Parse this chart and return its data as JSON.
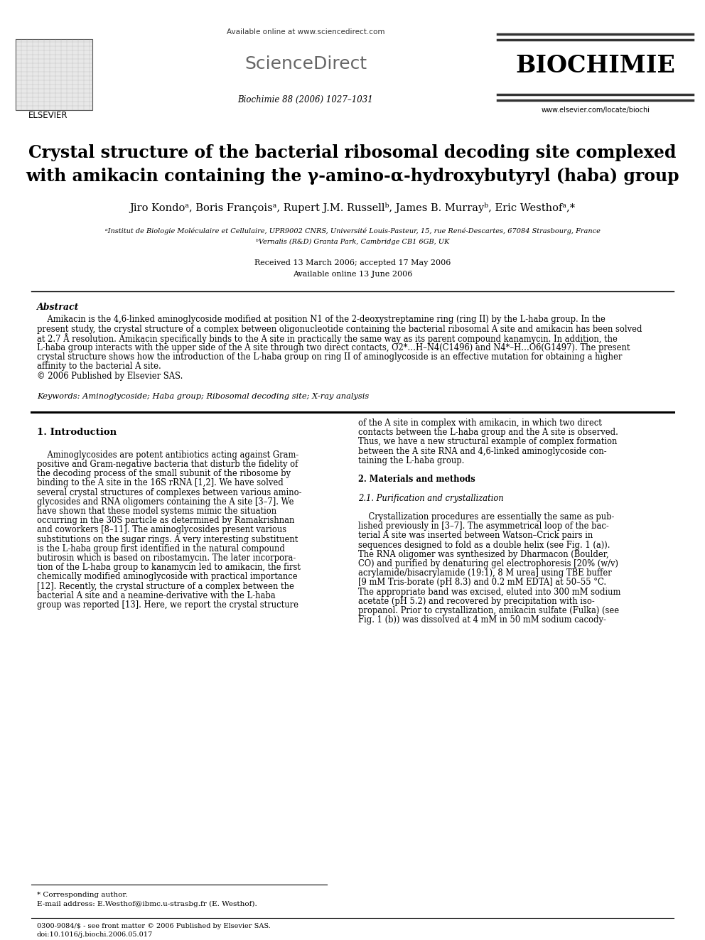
{
  "page_bg": "#ffffff",
  "header_available": "Available online at www.sciencedirect.com",
  "header_sciencedirect": "ScienceDirect",
  "header_journal": "BIOCHIMIE",
  "header_journal_info": "Biochimie 88 (2006) 1027–1031",
  "header_elsevier": "ELSEVIER",
  "header_url": "www.elsevier.com/locate/biochi",
  "title_line1": "Crystal structure of the bacterial ribosomal decoding site complexed",
  "title_line2": "with amikacin containing the γ-amino-α-hydroxybutyryl (haba) group",
  "authors": "Jiro Kondoᵃ, Boris Françoisᵃ, Rupert J.M. Russellᵇ, James B. Murrayᵇ, Eric Westhofᵃ,*",
  "affil_a": "ᵃInstitut de Biologie Moléculaire et Cellulaire, UPR9002 CNRS, Université Louis-Pasteur, 15, rue René-Descartes, 67084 Strasbourg, France",
  "affil_b": "ᵇVernalis (R&D) Granta Park, Cambridge CB1 6GB, UK",
  "received": "Received 13 March 2006; accepted 17 May 2006",
  "available_online": "Available online 13 June 2006",
  "abstract_title": "Abstract",
  "abstract_lines": [
    "    Amikacin is the 4,6-linked aminoglycoside modified at position N1 of the 2-deoxystreptamine ring (ring II) by the L-haba group. In the",
    "present study, the crystal structure of a complex between oligonucleotide containing the bacterial ribosomal A site and amikacin has been solved",
    "at 2.7 Å resolution. Amikacin specifically binds to the A site in practically the same way as its parent compound kanamycin. In addition, the",
    "L-haba group interacts with the upper side of the A site through two direct contacts, O2*…H–N4(C1496) and N4*–H…O6(G1497). The present",
    "crystal structure shows how the introduction of the L-haba group on ring II of aminoglycoside is an effective mutation for obtaining a higher",
    "affinity to the bacterial A site.",
    "© 2006 Published by Elsevier SAS."
  ],
  "keywords": "Keywords: Aminoglycoside; Haba group; Ribosomal decoding site; X-ray analysis",
  "intro_title": "1. Introduction",
  "left_col_lines": [
    "    Aminoglycosides are potent antibiotics acting against Gram-",
    "positive and Gram-negative bacteria that disturb the fidelity of",
    "the decoding process of the small subunit of the ribosome by",
    "binding to the A site in the 16S rRNA [1,2]. We have solved",
    "several crystal structures of complexes between various amino-",
    "glycosides and RNA oligomers containing the A site [3–7]. We",
    "have shown that these model systems mimic the situation",
    "occurring in the 30S particle as determined by Ramakrishnan",
    "and coworkers [8–11]. The aminoglycosides present various",
    "substitutions on the sugar rings. A very interesting substituent",
    "is the L-haba group first identified in the natural compound",
    "butirosin which is based on ribostamycin. The later incorpora-",
    "tion of the L-haba group to kanamycin led to amikacin, the first",
    "chemically modified aminoglycoside with practical importance",
    "[12]. Recently, the crystal structure of a complex between the",
    "bacterial A site and a neamine-derivative with the L-haba",
    "group was reported [13]. Here, we report the crystal structure"
  ],
  "right_col_lines": [
    "of the A site in complex with amikacin, in which two direct",
    "contacts between the L-haba group and the A site is observed.",
    "Thus, we have a new structural example of complex formation",
    "between the A site RNA and 4,6-linked aminoglycoside con-",
    "taining the L-haba group.",
    "",
    "2. Materials and methods",
    "",
    "2.1. Purification and crystallization",
    "",
    "    Crystallization procedures are essentially the same as pub-",
    "lished previously in [3–7]. The asymmetrical loop of the bac-",
    "terial A site was inserted between Watson–Crick pairs in",
    "sequences designed to fold as a double helix (see Fig. 1 (a)).",
    "The RNA oligomer was synthesized by Dharmacon (Boulder,",
    "CO) and purified by denaturing gel electrophoresis [20% (w/v)",
    "acrylamide/bisacrylamide (19:1), 8 M urea] using TBE buffer",
    "[9 mM Tris-borate (pH 8.3) and 0.2 mM EDTA] at 50–55 °C.",
    "The appropriate band was excised, eluted into 300 mM sodium",
    "acetate (pH 5.2) and recovered by precipitation with iso-",
    "propanol. Prior to crystallization, amikacin sulfate (Fulka) (see",
    "Fig. 1 (b)) was dissolved at 4 mM in 50 mM sodium cacody-"
  ],
  "right_col_bold": [
    6
  ],
  "right_col_italic": [
    8
  ],
  "footnote_star": "* Corresponding author.",
  "footnote_email": "E-mail address: E.Westhof@ibmc.u-strasbg.fr (E. Westhof).",
  "footnote_issn": "0300-9084/$ - see front matter © 2006 Published by Elsevier SAS.",
  "footnote_doi": "doi:10.1016/j.biochi.2006.05.017"
}
